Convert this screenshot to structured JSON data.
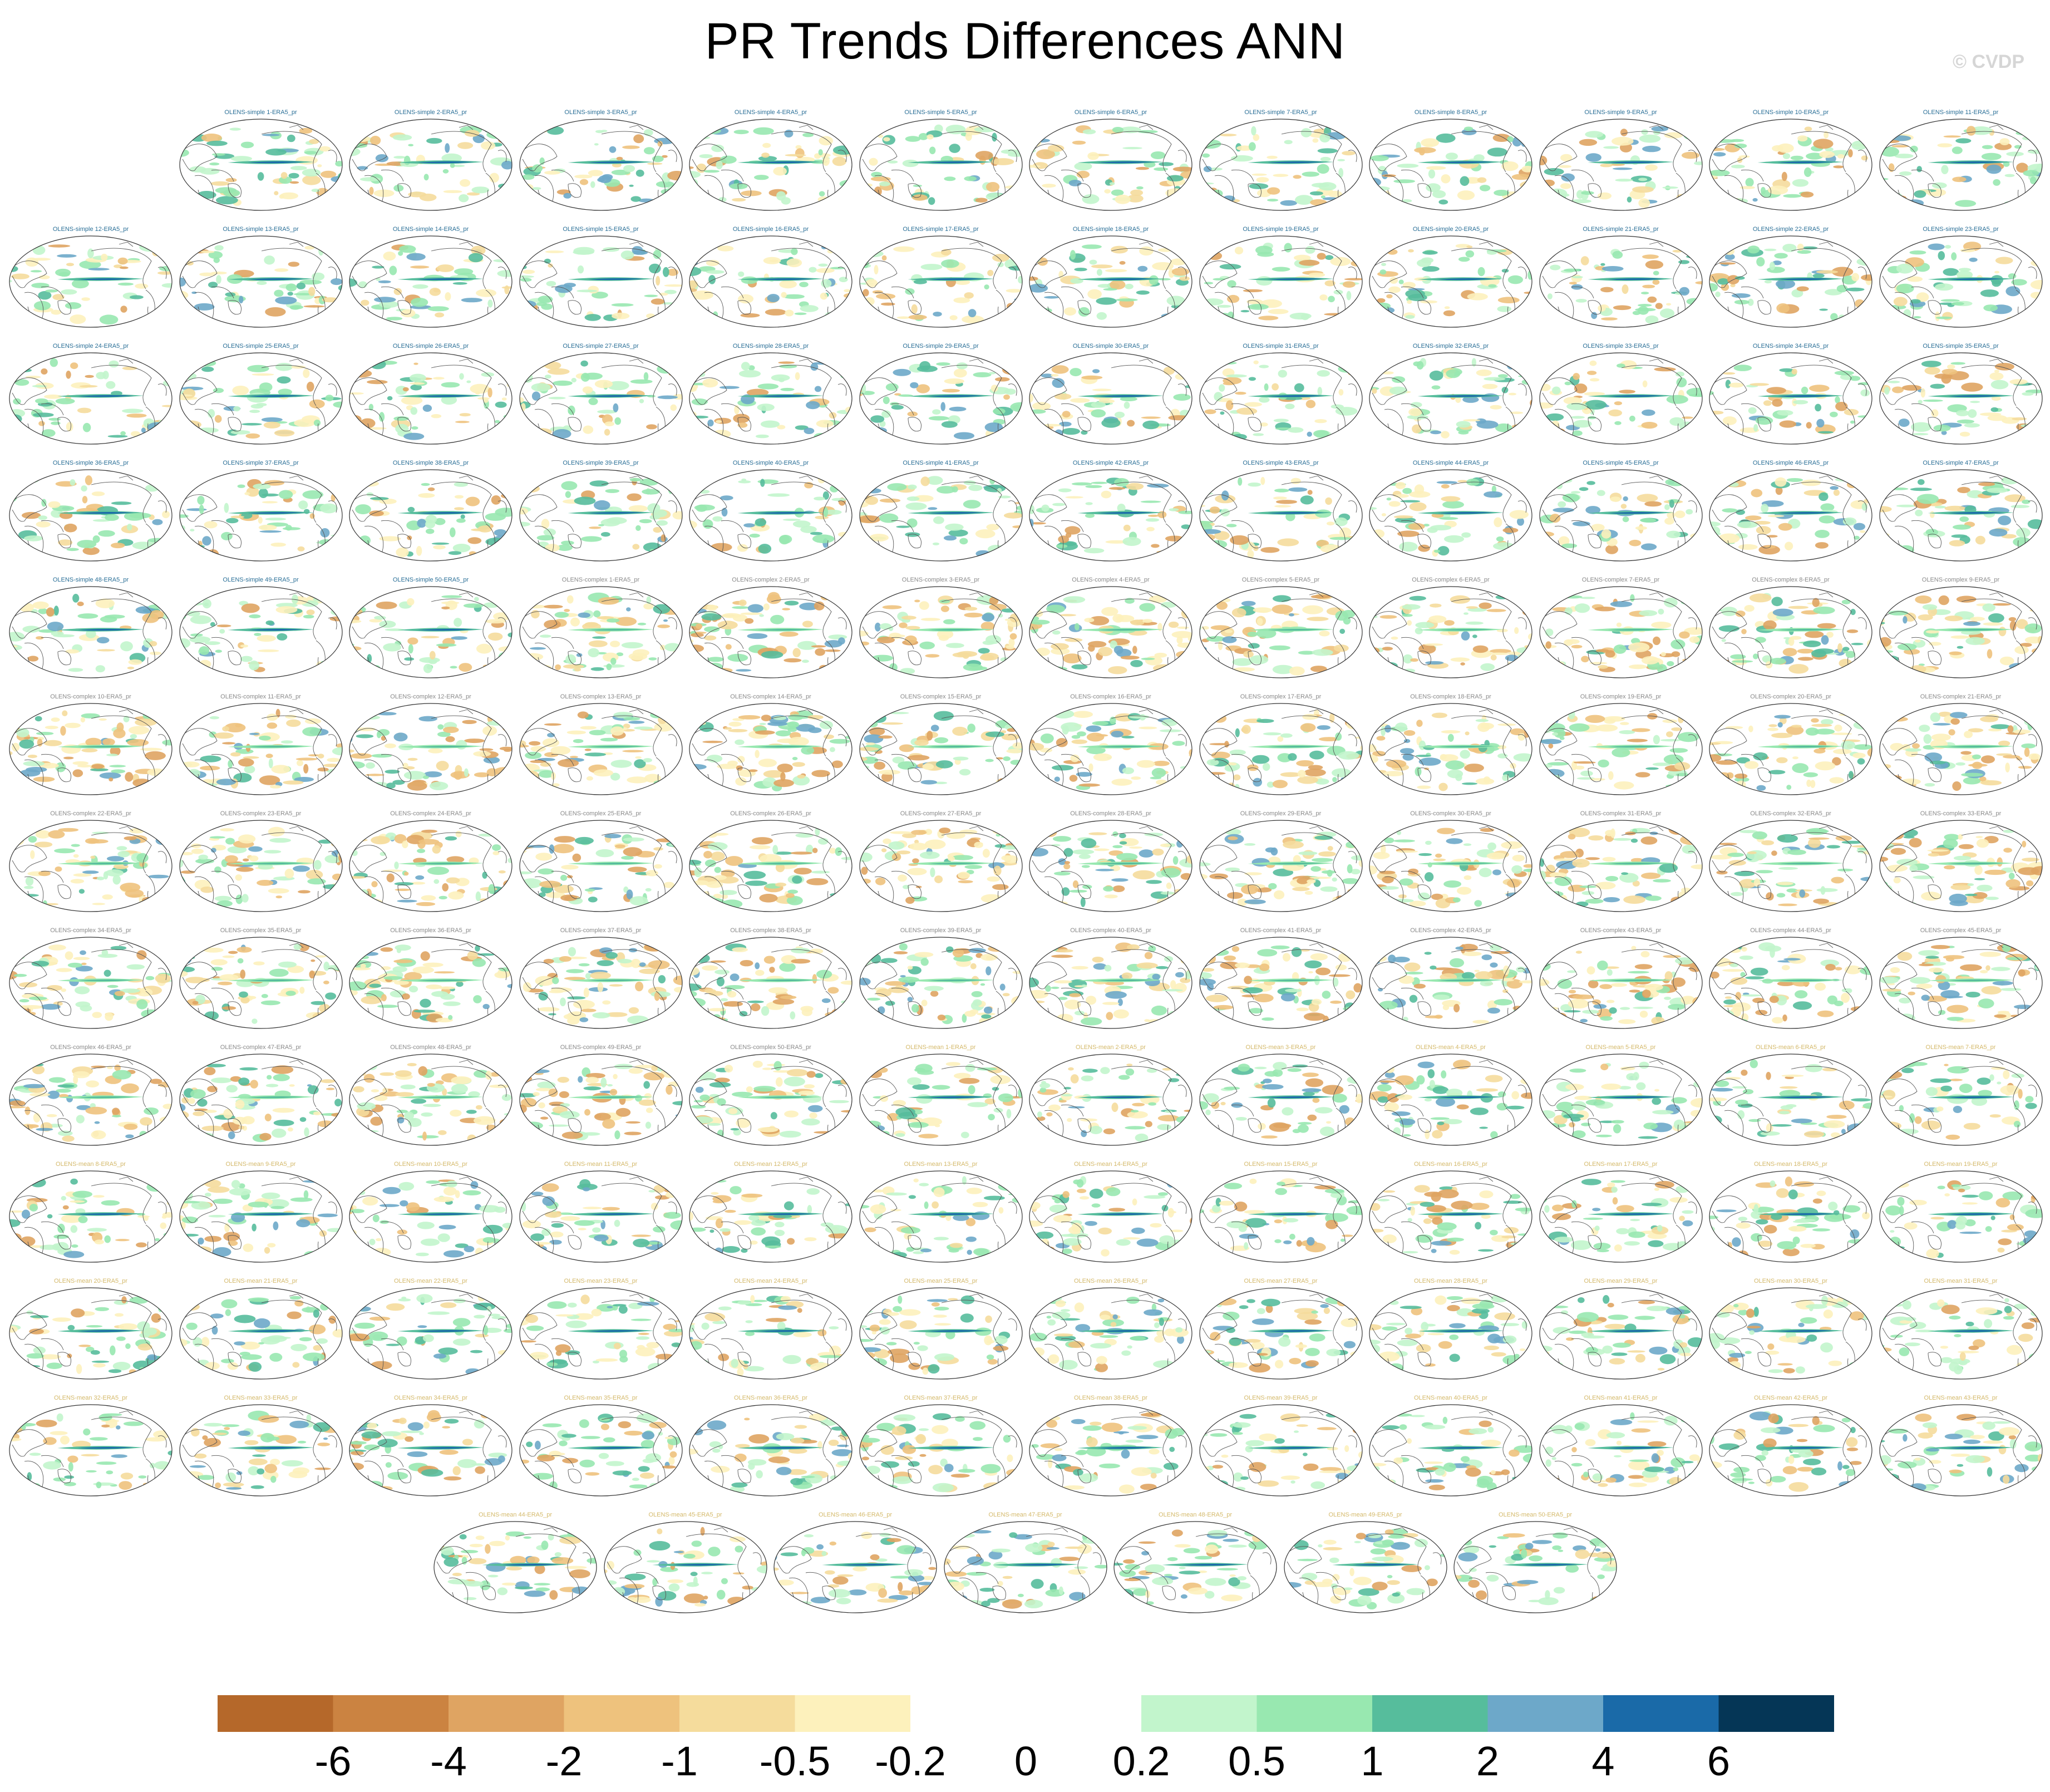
{
  "title": "PR Trends Differences ANN",
  "watermark": "© CVDP",
  "chart_data": {
    "type": "heatmap",
    "description_kind": "grid of global map panels",
    "title": "PR Trends Differences ANN",
    "panel_title_pattern": "<member>-ERA5_pr",
    "panels": [
      "OLENS-simple 1-ERA5_pr",
      "OLENS-simple 2-ERA5_pr",
      "OLENS-simple 3-ERA5_pr",
      "OLENS-simple 4-ERA5_pr",
      "OLENS-simple 5-ERA5_pr",
      "OLENS-simple 6-ERA5_pr",
      "OLENS-simple 7-ERA5_pr",
      "OLENS-simple 8-ERA5_pr",
      "OLENS-simple 9-ERA5_pr",
      "OLENS-simple 10-ERA5_pr",
      "OLENS-simple 11-ERA5_pr",
      "OLENS-simple 12-ERA5_pr",
      "OLENS-simple 13-ERA5_pr",
      "OLENS-simple 14-ERA5_pr",
      "OLENS-simple 15-ERA5_pr",
      "OLENS-simple 16-ERA5_pr",
      "OLENS-simple 17-ERA5_pr",
      "OLENS-simple 18-ERA5_pr",
      "OLENS-simple 19-ERA5_pr",
      "OLENS-simple 20-ERA5_pr",
      "OLENS-simple 21-ERA5_pr",
      "OLENS-simple 22-ERA5_pr",
      "OLENS-simple 23-ERA5_pr",
      "OLENS-simple 24-ERA5_pr",
      "OLENS-simple 25-ERA5_pr",
      "OLENS-simple 26-ERA5_pr",
      "OLENS-simple 27-ERA5_pr",
      "OLENS-simple 28-ERA5_pr",
      "OLENS-simple 29-ERA5_pr",
      "OLENS-simple 30-ERA5_pr",
      "OLENS-simple 31-ERA5_pr",
      "OLENS-simple 32-ERA5_pr",
      "OLENS-simple 33-ERA5_pr",
      "OLENS-simple 34-ERA5_pr",
      "OLENS-simple 35-ERA5_pr",
      "OLENS-simple 36-ERA5_pr",
      "OLENS-simple 37-ERA5_pr",
      "OLENS-simple 38-ERA5_pr",
      "OLENS-simple 39-ERA5_pr",
      "OLENS-simple 40-ERA5_pr",
      "OLENS-simple 41-ERA5_pr",
      "OLENS-simple 42-ERA5_pr",
      "OLENS-simple 43-ERA5_pr",
      "OLENS-simple 44-ERA5_pr",
      "OLENS-simple 45-ERA5_pr",
      "OLENS-simple 46-ERA5_pr",
      "OLENS-simple 47-ERA5_pr",
      "OLENS-simple 48-ERA5_pr",
      "OLENS-simple 49-ERA5_pr",
      "OLENS-simple 50-ERA5_pr",
      "OLENS-complex 1-ERA5_pr",
      "OLENS-complex 2-ERA5_pr",
      "OLENS-complex 3-ERA5_pr",
      "OLENS-complex 4-ERA5_pr",
      "OLENS-complex 5-ERA5_pr",
      "OLENS-complex 6-ERA5_pr",
      "OLENS-complex 7-ERA5_pr",
      "OLENS-complex 8-ERA5_pr",
      "OLENS-complex 9-ERA5_pr",
      "OLENS-complex 10-ERA5_pr",
      "OLENS-complex 11-ERA5_pr",
      "OLENS-complex 12-ERA5_pr",
      "OLENS-complex 13-ERA5_pr",
      "OLENS-complex 14-ERA5_pr",
      "OLENS-complex 15-ERA5_pr",
      "OLENS-complex 16-ERA5_pr",
      "OLENS-complex 17-ERA5_pr",
      "OLENS-complex 18-ERA5_pr",
      "OLENS-complex 19-ERA5_pr",
      "OLENS-complex 20-ERA5_pr",
      "OLENS-complex 21-ERA5_pr",
      "OLENS-complex 22-ERA5_pr",
      "OLENS-complex 23-ERA5_pr",
      "OLENS-complex 24-ERA5_pr",
      "OLENS-complex 25-ERA5_pr",
      "OLENS-complex 26-ERA5_pr",
      "OLENS-complex 27-ERA5_pr",
      "OLENS-complex 28-ERA5_pr",
      "OLENS-complex 29-ERA5_pr",
      "OLENS-complex 30-ERA5_pr",
      "OLENS-complex 31-ERA5_pr",
      "OLENS-complex 32-ERA5_pr",
      "OLENS-complex 33-ERA5_pr",
      "OLENS-complex 34-ERA5_pr",
      "OLENS-complex 35-ERA5_pr",
      "OLENS-complex 36-ERA5_pr",
      "OLENS-complex 37-ERA5_pr",
      "OLENS-complex 38-ERA5_pr",
      "OLENS-complex 39-ERA5_pr",
      "OLENS-complex 40-ERA5_pr",
      "OLENS-complex 41-ERA5_pr",
      "OLENS-complex 42-ERA5_pr",
      "OLENS-complex 43-ERA5_pr",
      "OLENS-complex 44-ERA5_pr",
      "OLENS-complex 45-ERA5_pr",
      "OLENS-complex 46-ERA5_pr",
      "OLENS-complex 47-ERA5_pr",
      "OLENS-complex 48-ERA5_pr",
      "OLENS-complex 49-ERA5_pr",
      "OLENS-complex 50-ERA5_pr",
      "OLENS-mean 1-ERA5_pr",
      "OLENS-mean 2-ERA5_pr",
      "OLENS-mean 3-ERA5_pr",
      "OLENS-mean 4-ERA5_pr",
      "OLENS-mean 5-ERA5_pr",
      "OLENS-mean 6-ERA5_pr",
      "OLENS-mean 7-ERA5_pr",
      "OLENS-mean 8-ERA5_pr",
      "OLENS-mean 9-ERA5_pr",
      "OLENS-mean 10-ERA5_pr",
      "OLENS-mean 11-ERA5_pr",
      "OLENS-mean 12-ERA5_pr",
      "OLENS-mean 13-ERA5_pr",
      "OLENS-mean 14-ERA5_pr",
      "OLENS-mean 15-ERA5_pr",
      "OLENS-mean 16-ERA5_pr",
      "OLENS-mean 17-ERA5_pr",
      "OLENS-mean 18-ERA5_pr",
      "OLENS-mean 19-ERA5_pr",
      "OLENS-mean 20-ERA5_pr",
      "OLENS-mean 21-ERA5_pr",
      "OLENS-mean 22-ERA5_pr",
      "OLENS-mean 23-ERA5_pr",
      "OLENS-mean 24-ERA5_pr",
      "OLENS-mean 25-ERA5_pr",
      "OLENS-mean 26-ERA5_pr",
      "OLENS-mean 27-ERA5_pr",
      "OLENS-mean 28-ERA5_pr",
      "OLENS-mean 29-ERA5_pr",
      "OLENS-mean 30-ERA5_pr",
      "OLENS-mean 31-ERA5_pr",
      "OLENS-mean 32-ERA5_pr",
      "OLENS-mean 33-ERA5_pr",
      "OLENS-mean 34-ERA5_pr",
      "OLENS-mean 35-ERA5_pr",
      "OLENS-mean 36-ERA5_pr",
      "OLENS-mean 37-ERA5_pr",
      "OLENS-mean 38-ERA5_pr",
      "OLENS-mean 39-ERA5_pr",
      "OLENS-mean 40-ERA5_pr",
      "OLENS-mean 41-ERA5_pr",
      "OLENS-mean 42-ERA5_pr",
      "OLENS-mean 43-ERA5_pr",
      "OLENS-mean 44-ERA5_pr",
      "OLENS-mean 45-ERA5_pr",
      "OLENS-mean 46-ERA5_pr",
      "OLENS-mean 47-ERA5_pr",
      "OLENS-mean 48-ERA5_pr",
      "OLENS-mean 49-ERA5_pr",
      "OLENS-mean 50-ERA5_pr"
    ],
    "panel_title_colors": {
      "OLENS-simple": "#2a6f97",
      "OLENS-complex": "#8a8a8a",
      "OLENS-mean": "#d4b96a"
    },
    "colorbar": {
      "labels": [
        "-6",
        "-4",
        "-2",
        "-1",
        "-0.5",
        "-0.2",
        "0",
        "0.2",
        "0.5",
        "1",
        "2",
        "4",
        "6"
      ],
      "colors": [
        "#b5682a",
        "#cb8341",
        "#dfa462",
        "#eec27d",
        "#f5dc9c",
        "#fdf1bc",
        "#ffffff",
        "#ffffff",
        "#c2f5cc",
        "#98e8b0",
        "#56bd9c",
        "#6da8c9",
        "#1a6aa8",
        "#053656"
      ]
    }
  }
}
